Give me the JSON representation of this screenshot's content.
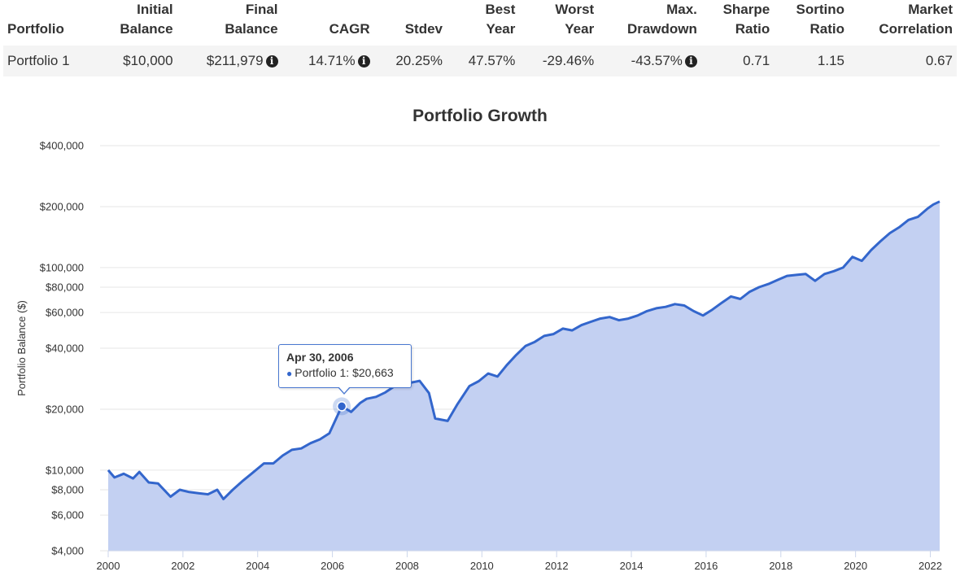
{
  "table": {
    "headers": [
      [
        "",
        "Portfolio"
      ],
      [
        "Initial",
        "Balance"
      ],
      [
        "Final",
        "Balance"
      ],
      [
        "",
        "CAGR"
      ],
      [
        "",
        "Stdev"
      ],
      [
        "Best",
        "Year"
      ],
      [
        "Worst",
        "Year"
      ],
      [
        "Max.",
        "Drawdown"
      ],
      [
        "Sharpe",
        "Ratio"
      ],
      [
        "Sortino",
        "Ratio"
      ],
      [
        "Market",
        "Correlation"
      ]
    ],
    "rows": [
      {
        "portfolio": "Portfolio 1",
        "initial_balance": "$10,000",
        "final_balance": "$211,979",
        "cagr": "14.71%",
        "stdev": "20.25%",
        "best_year": "47.57%",
        "worst_year": "-29.46%",
        "max_drawdown": "-43.57%",
        "sharpe": "0.71",
        "sortino": "1.15",
        "market_correlation": "0.67"
      }
    ],
    "info_icon": "info-circle-icon"
  },
  "tooltip": {
    "date": "Apr 30, 2006",
    "series": "Portfolio 1",
    "value_text": "$20,663"
  },
  "colors": {
    "line": "#3366cc",
    "area": "#c3d0f2",
    "grid": "#e6e6e6"
  },
  "chart_data": {
    "type": "area",
    "title": "Portfolio Growth",
    "xlabel": "",
    "ylabel": "Portfolio Balance ($)",
    "y_scale": "log",
    "ylim": [
      4000,
      400000
    ],
    "x_range": [
      "2000-01",
      "2022-04"
    ],
    "x_ticks": [
      "2000",
      "2002",
      "2004",
      "2006",
      "2008",
      "2010",
      "2012",
      "2014",
      "2016",
      "2018",
      "2020",
      "2022"
    ],
    "y_ticks": [
      {
        "value": 4000,
        "label": "$4,000"
      },
      {
        "value": 6000,
        "label": "$6,000"
      },
      {
        "value": 8000,
        "label": "$8,000"
      },
      {
        "value": 10000,
        "label": "$10,000"
      },
      {
        "value": 20000,
        "label": "$20,000"
      },
      {
        "value": 40000,
        "label": "$40,000"
      },
      {
        "value": 60000,
        "label": "$60,000"
      },
      {
        "value": 80000,
        "label": "$80,000"
      },
      {
        "value": 100000,
        "label": "$100,000"
      },
      {
        "value": 200000,
        "label": "$200,000"
      },
      {
        "value": 400000,
        "label": "$400,000"
      }
    ],
    "grid": "horizontal",
    "legend": "none",
    "series": [
      {
        "points": [
          [
            "2000-01",
            10000
          ],
          [
            "2000-03",
            9200
          ],
          [
            "2000-06",
            9600
          ],
          [
            "2000-09",
            9100
          ],
          [
            "2000-11",
            9800
          ],
          [
            "2001-02",
            8700
          ],
          [
            "2001-05",
            8600
          ],
          [
            "2001-09",
            7400
          ],
          [
            "2001-12",
            8000
          ],
          [
            "2002-03",
            7800
          ],
          [
            "2002-06",
            7700
          ],
          [
            "2002-09",
            7600
          ],
          [
            "2002-12",
            8000
          ],
          [
            "2003-02",
            7200
          ],
          [
            "2003-05",
            8000
          ],
          [
            "2003-08",
            8800
          ],
          [
            "2003-11",
            9600
          ],
          [
            "2004-03",
            10800
          ],
          [
            "2004-06",
            10800
          ],
          [
            "2004-09",
            11800
          ],
          [
            "2004-12",
            12600
          ],
          [
            "2005-03",
            12800
          ],
          [
            "2005-06",
            13600
          ],
          [
            "2005-09",
            14200
          ],
          [
            "2005-12",
            15200
          ],
          [
            "2006-04",
            20663
          ],
          [
            "2006-07",
            19400
          ],
          [
            "2006-10",
            21500
          ],
          [
            "2006-12",
            22500
          ],
          [
            "2007-03",
            23000
          ],
          [
            "2007-06",
            24200
          ],
          [
            "2007-09",
            26000
          ],
          [
            "2007-11",
            27500
          ],
          [
            "2008-02",
            27000
          ],
          [
            "2008-05",
            27600
          ],
          [
            "2008-08",
            24000
          ],
          [
            "2008-10",
            18000
          ],
          [
            "2009-02",
            17500
          ],
          [
            "2009-05",
            21000
          ],
          [
            "2009-09",
            26000
          ],
          [
            "2009-12",
            27500
          ],
          [
            "2010-03",
            30000
          ],
          [
            "2010-06",
            29000
          ],
          [
            "2010-09",
            33000
          ],
          [
            "2010-12",
            37000
          ],
          [
            "2011-03",
            41000
          ],
          [
            "2011-06",
            43000
          ],
          [
            "2011-09",
            46000
          ],
          [
            "2011-12",
            47000
          ],
          [
            "2012-03",
            50000
          ],
          [
            "2012-06",
            49000
          ],
          [
            "2012-09",
            52000
          ],
          [
            "2012-12",
            54000
          ],
          [
            "2013-03",
            56000
          ],
          [
            "2013-06",
            57000
          ],
          [
            "2013-09",
            55000
          ],
          [
            "2013-12",
            56000
          ],
          [
            "2014-03",
            58000
          ],
          [
            "2014-06",
            61000
          ],
          [
            "2014-09",
            63000
          ],
          [
            "2014-12",
            64000
          ],
          [
            "2015-03",
            66000
          ],
          [
            "2015-06",
            65000
          ],
          [
            "2015-09",
            61000
          ],
          [
            "2015-12",
            58000
          ],
          [
            "2016-03",
            62000
          ],
          [
            "2016-06",
            67000
          ],
          [
            "2016-09",
            72000
          ],
          [
            "2016-12",
            70000
          ],
          [
            "2017-03",
            76000
          ],
          [
            "2017-06",
            80000
          ],
          [
            "2017-09",
            83000
          ],
          [
            "2017-12",
            87000
          ],
          [
            "2018-03",
            91000
          ],
          [
            "2018-06",
            92000
          ],
          [
            "2018-09",
            93000
          ],
          [
            "2018-12",
            86000
          ],
          [
            "2019-03",
            93000
          ],
          [
            "2019-06",
            96000
          ],
          [
            "2019-09",
            100000
          ],
          [
            "2019-12",
            113000
          ],
          [
            "2020-03",
            108000
          ],
          [
            "2020-06",
            122000
          ],
          [
            "2020-09",
            135000
          ],
          [
            "2020-12",
            148000
          ],
          [
            "2021-03",
            158000
          ],
          [
            "2021-06",
            172000
          ],
          [
            "2021-09",
            178000
          ],
          [
            "2021-12",
            195000
          ],
          [
            "2022-02",
            205000
          ],
          [
            "2022-04",
            211979
          ]
        ]
      }
    ],
    "highlight": {
      "date": "2006-04",
      "value": 20663
    }
  }
}
